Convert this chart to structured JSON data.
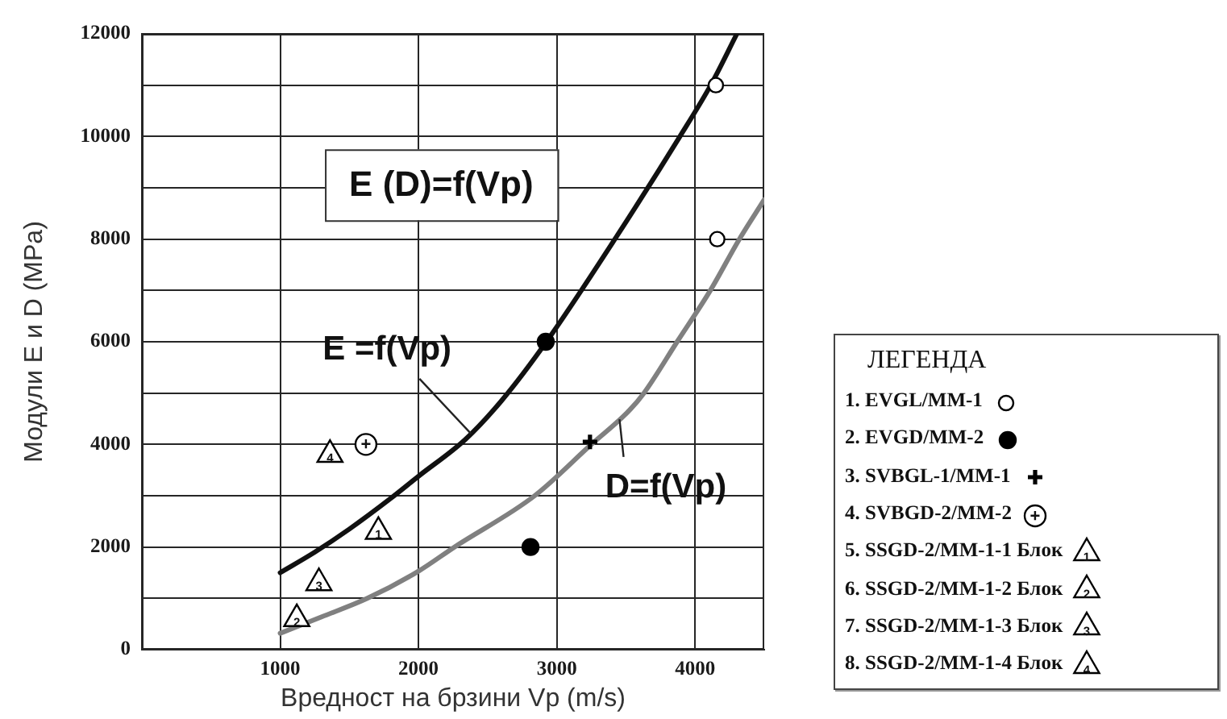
{
  "chart_data": {
    "type": "scatter",
    "title": "E (D)=f(Vp)",
    "xlabel": "Вредност на брзини Vp (m/s)",
    "ylabel": "Модули Е и D (MPa)",
    "legend_title": "ЛЕГЕНДА",
    "xlim": [
      0,
      4500
    ],
    "xticks": [
      1000,
      2000,
      3000,
      4000
    ],
    "ylim": [
      0,
      12000
    ],
    "yticks": [
      0,
      {
        "value": 1000,
        "label": null
      },
      2000,
      {
        "value": 3000,
        "label": null
      },
      4000,
      {
        "value": 5000,
        "label": null
      },
      6000,
      {
        "value": 7000,
        "label": null
      },
      8000,
      {
        "value": 9000,
        "label": null
      },
      10000,
      {
        "value": 11000,
        "label": null
      },
      12000
    ],
    "grid": true,
    "legend": "right",
    "annotations": [
      {
        "text": "1",
        "x": 1710,
        "y": 2300
      },
      {
        "text": "2",
        "x": 1120,
        "y": 600
      },
      {
        "text": "3",
        "x": 1280,
        "y": 1300
      },
      {
        "text": "4",
        "x": 1360,
        "y": 3800
      },
      {
        "text": "+",
        "x": 1620,
        "y": 4000
      }
    ],
    "series": [
      {
        "name": "1. EVGL/MM-1",
        "marker": "circle",
        "color": "#ffffff",
        "x": [
          4150,
          4160
        ],
        "values": [
          11000,
          8000
        ]
      },
      {
        "name": "2. EVGD/MM-2",
        "marker": "circle",
        "color": "#000000",
        "x": [
          2920,
          2810
        ],
        "values": [
          6000,
          2000
        ]
      },
      {
        "name": "3. SVBGL-1/MM-1",
        "marker": "cross",
        "color": "#000000",
        "x": [
          3240
        ],
        "values": [
          4050
        ]
      },
      {
        "name": "4. SVBGD-2/MM-2",
        "marker": "circle",
        "color": "#ffffff",
        "x": [
          1620
        ],
        "values": [
          4000
        ]
      },
      {
        "name": "5. SSGD-2/MM-1-1 Блок",
        "marker": "triangle",
        "color": "#ffffff",
        "x": [
          1710
        ],
        "values": [
          2300
        ]
      },
      {
        "name": "6. SSGD-2/MM-1-2 Блок",
        "marker": "triangle",
        "color": "#ffffff",
        "x": [
          1120
        ],
        "values": [
          600
        ]
      },
      {
        "name": "7. SSGD-2/MM-1-3 Блок",
        "marker": "triangle",
        "color": "#ffffff",
        "x": [
          1280
        ],
        "values": [
          1300
        ]
      },
      {
        "name": "8. SSGD-2/MM-1-4 Блок",
        "marker": "triangle",
        "color": "#ffffff",
        "x": [
          1360
        ],
        "values": [
          3800
        ]
      },
      {
        "name": "E =f(Vp)",
        "type": "line",
        "marker": "none",
        "color": "#111111",
        "x": [
          1000,
          1250,
          1500,
          1800,
          2000,
          2340,
          2600,
          2925,
          3420,
          3890,
          4113,
          4302
        ],
        "values": [
          1500,
          1900,
          2350,
          2950,
          3380,
          4100,
          4850,
          6000,
          8000,
          10000,
          11000,
          12000
        ]
      },
      {
        "name": "D=f(Vp)",
        "type": "line",
        "marker": "none",
        "color": "#808080",
        "x": [
          1000,
          1300,
          1630,
          2000,
          2260,
          2840,
          3250,
          3520,
          3630,
          3870,
          4110,
          4320,
          4500
        ],
        "values": [
          320,
          640,
          1000,
          1530,
          2000,
          3000,
          4000,
          4650,
          5000,
          6000,
          7000,
          8000,
          8770
        ]
      }
    ]
  }
}
